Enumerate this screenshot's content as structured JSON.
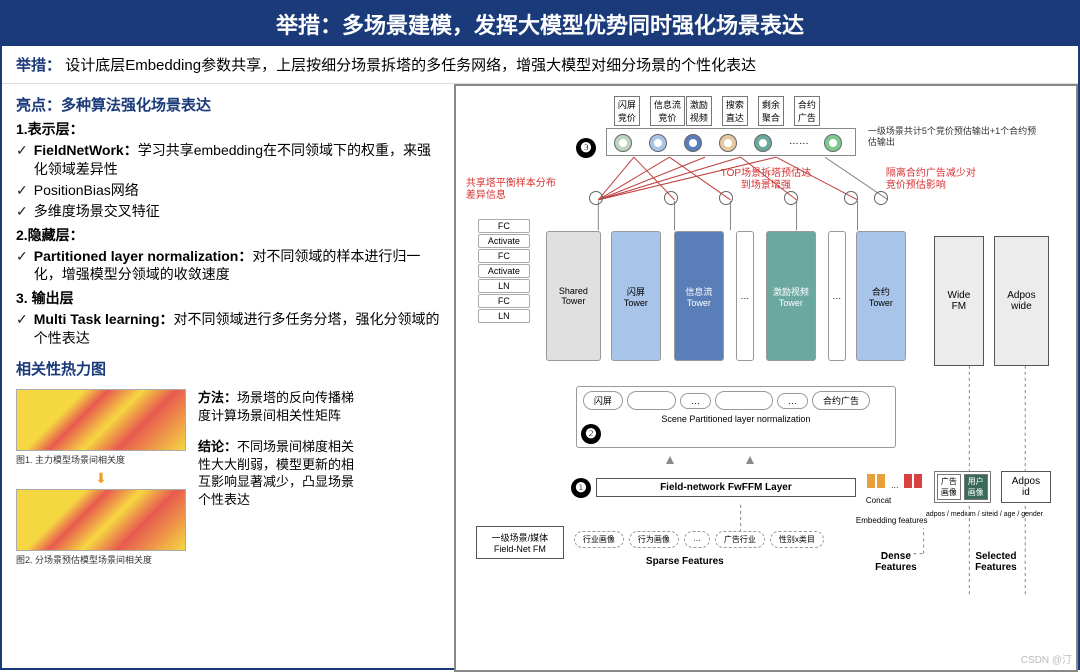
{
  "title": "举措：多场景建模，发挥大模型优势同时强化场景表达",
  "subtitle_label": "举措：",
  "subtitle_text": "设计底层Embedding参数共享，上层按细分场景拆塔的多任务网络，增强大模型对细分场景的个性化表达",
  "highlight": "亮点：多种算法强化场景表达",
  "s1": "1.表示层：",
  "s1_i1_b": "FieldNetWork：",
  "s1_i1_t": "学习共享embedding在不同领域下的权重，来强化领域差异性",
  "s1_i2": "PositionBias网络",
  "s1_i3": "多维度场景交叉特征",
  "s2": "2.隐藏层：",
  "s2_i1_b": "Partitioned layer normalization：",
  "s2_i1_t": "对不同领域的样本进行归一化，增强模型分领域的收敛速度",
  "s3": "3. 输出层",
  "s3_i1_b": "Multi Task learning：",
  "s3_i1_t": "对不同领域进行多任务分塔，强化分领域的个性表达",
  "hm_title": "相关性热力图",
  "hm_cap1": "图1. 主力模型场景间相关度",
  "hm_cap2": "图2. 分场景预估模型场景间相关度",
  "method_lbl": "方法：",
  "method_txt": "场景塔的反向传播梯度计算场景间相关性矩阵",
  "concl_lbl": "结论：",
  "concl_txt": "不同场景间梯度相关性大大削弱，模型更新的相互影响显著减少，凸显场景个性表达",
  "diagram": {
    "top_boxes": [
      "闪屏\n竞价",
      "信息流\n竞价",
      "激励\n视频",
      "搜索\n直达",
      "剩余\n聚合",
      "合约\n广告"
    ],
    "side_note": "一级场景共计5个竞价预估输出+1个合约预估输出",
    "red1": "共享塔平衡样本分布\n差异信息",
    "red2": "TOP场景拆塔预估达\n到场景增强",
    "red3": "隔离合约广告减少对\n竞价预估影响",
    "stack": [
      "FC",
      "Activate",
      "FC",
      "Activate",
      "LN",
      "FC",
      "LN"
    ],
    "towers": [
      {
        "label": "Shared\nTower",
        "cls": "t-gray"
      },
      {
        "label": "闪屏\nTower",
        "cls": "t-blue"
      },
      {
        "label": "信息流\nTower",
        "cls": "t-dblue"
      },
      {
        "label": "…",
        "cls": "t-white"
      },
      {
        "label": "激励视频\nTower",
        "cls": "t-teal"
      },
      {
        "label": "…",
        "cls": "t-white"
      },
      {
        "label": "合约\nTower",
        "cls": "t-blue"
      }
    ],
    "tags": [
      "闪屏",
      "信息流",
      "…",
      "激励视频",
      "…",
      "合约广告"
    ],
    "scene_ln": "Scene Partitioned layer normalization",
    "field_layer": "Field-network FwFFM Layer",
    "field_fm": "一级场景/媒体\nField-Net FM",
    "sparse": [
      "行业画像",
      "行为画像",
      "…",
      "广告行业",
      "性别x类目"
    ],
    "sparse_lbl": "Sparse Features",
    "concat": "Concat",
    "emb_lbl": "Embedding features",
    "dense_lbl": "Dense\nFeatures",
    "sel_lbl": "Selected\nFeatures",
    "wide_fm": "Wide\nFM",
    "adpos_wide": "Adpos\nwide",
    "adpos_id": "Adpos\nid",
    "mini1": "广告\n画像",
    "mini2": "用户\n画像",
    "pos_txt": "adpos / medium / siteid / age / gender",
    "badges": [
      "❶",
      "❷",
      "❸"
    ],
    "colors": {
      "c1": "#bcd6c1",
      "c2": "#a8c4e8",
      "c3": "#5a7fb8",
      "c4": "#e8c8a0",
      "c5": "#6aa8a0",
      "c6": "#7fc98f",
      "white": "#ffffff"
    }
  },
  "watermark": "CSDN @汀"
}
